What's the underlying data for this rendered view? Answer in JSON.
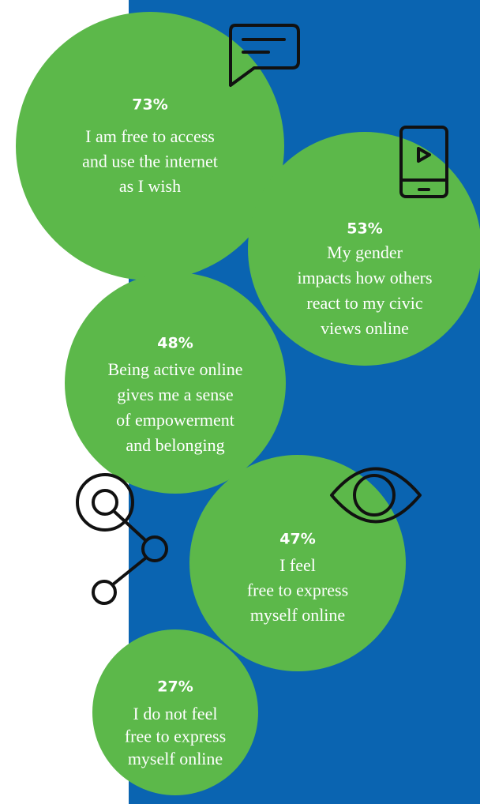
{
  "bubbles": [
    {
      "percent": "73%",
      "lines": [
        "I am free to access",
        "and use the internet",
        "as I wish"
      ]
    },
    {
      "percent": "53%",
      "lines": [
        "My gender",
        "impacts how others",
        "react to my civic",
        "views online"
      ]
    },
    {
      "percent": "48%",
      "lines": [
        "Being active online",
        "gives me a sense",
        "of empowerment",
        "and belonging"
      ]
    },
    {
      "percent": "47%",
      "lines": [
        "I  feel",
        "free to express",
        "myself online"
      ]
    },
    {
      "percent": "27%",
      "lines": [
        "I do not feel",
        "free to express",
        "myself online"
      ]
    }
  ]
}
